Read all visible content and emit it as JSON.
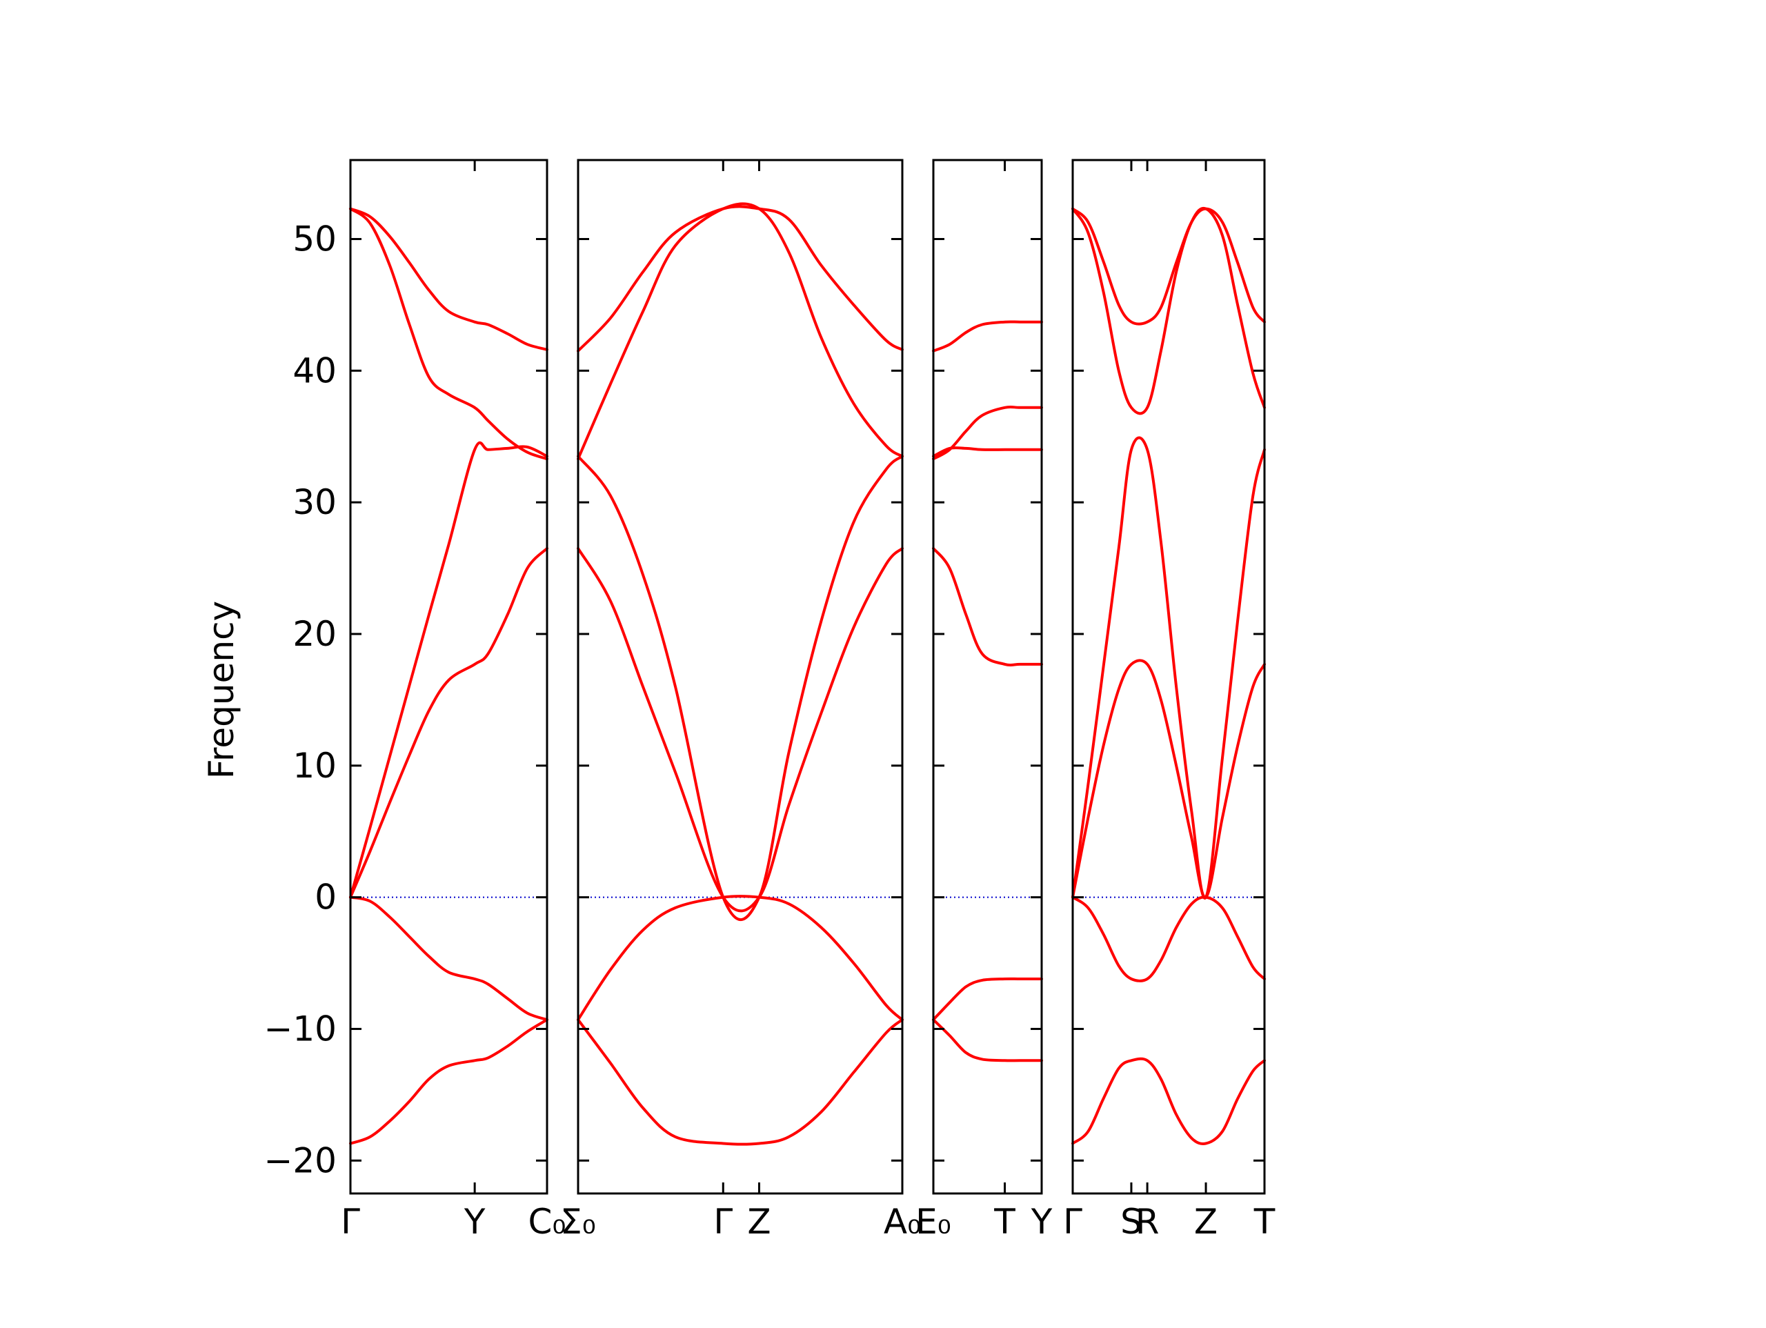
{
  "chart_data": {
    "type": "line",
    "title": "",
    "ylabel": "Frequency",
    "ylim": [
      -22.5,
      56
    ],
    "yticks": [
      -20,
      -10,
      0,
      10,
      20,
      30,
      40,
      50
    ],
    "ytick_labels": [
      "−20",
      "−10",
      "0",
      "10",
      "20",
      "30",
      "40",
      "50"
    ],
    "line_color": "#ff0000",
    "zero_line_color": "#0000cc",
    "grid": false,
    "legend": false,
    "panels": [
      {
        "id": "panel-1",
        "x_labels": [
          "Γ",
          "Y",
          "C₀"
        ],
        "x_positions": [
          0,
          0.6321,
          1
        ],
        "series": [
          {
            "x": [
              0,
              0.1,
              0.2,
              0.3,
              0.4,
              0.5,
              0.6321,
              0.7,
              0.8,
              0.9,
              1
            ],
            "values": [
              52.3,
              51.2,
              48,
              43.5,
              39.5,
              38.2,
              37.2,
              36.2,
              34.8,
              33.8,
              33.3
            ]
          },
          {
            "x": [
              0,
              0.1,
              0.2,
              0.3,
              0.4,
              0.5,
              0.6321,
              0.7,
              0.8,
              0.9,
              1
            ],
            "values": [
              52.3,
              51.7,
              50.2,
              48.2,
              46.1,
              44.5,
              43.7,
              43.5,
              42.8,
              42,
              41.6
            ]
          },
          {
            "x": [
              0,
              0.1,
              0.2,
              0.3,
              0.4,
              0.5,
              0.6321,
              0.7,
              0.8,
              0.9,
              1
            ],
            "values": [
              0,
              5.3,
              10.7,
              16.1,
              21.5,
              26.8,
              34,
              34,
              34.1,
              34.2,
              33.5
            ]
          },
          {
            "x": [
              0,
              0.1,
              0.2,
              0.3,
              0.4,
              0.5,
              0.6321,
              0.7,
              0.8,
              0.9,
              1
            ],
            "values": [
              0,
              3.5,
              7.2,
              10.8,
              14.2,
              16.5,
              17.7,
              18.5,
              21.5,
              25,
              26.5
            ]
          },
          {
            "x": [
              0,
              0.1,
              0.2,
              0.3,
              0.4,
              0.5,
              0.6321,
              0.7,
              0.8,
              0.9,
              1
            ],
            "values": [
              0,
              -0.3,
              -1.5,
              -3,
              -4.5,
              -5.7,
              -6.2,
              -6.6,
              -7.7,
              -8.8,
              -9.3
            ]
          },
          {
            "x": [
              0,
              0.1,
              0.2,
              0.3,
              0.4,
              0.5,
              0.6321,
              0.7,
              0.8,
              0.9,
              1
            ],
            "values": [
              -18.7,
              -18.2,
              -17,
              -15.5,
              -13.8,
              -12.8,
              -12.4,
              -12.2,
              -11.3,
              -10.2,
              -9.3
            ]
          }
        ]
      },
      {
        "id": "panel-2",
        "x_labels": [
          "Σ₀",
          "Γ",
          "Z",
          "A₀"
        ],
        "x_positions": [
          0,
          0.4474,
          0.5585,
          1
        ],
        "series": [
          {
            "x": [
              0,
              0.1,
              0.2,
              0.3,
              0.4474,
              0.5585,
              0.65,
              0.75,
              0.85,
              0.95,
              1
            ],
            "values": [
              41.5,
              44,
              47.5,
              50.5,
              52.3,
              52.3,
              51.5,
              48,
              45,
              42.3,
              41.6
            ]
          },
          {
            "x": [
              0,
              0.1,
              0.2,
              0.3,
              0.4474,
              0.5585,
              0.65,
              0.75,
              0.85,
              0.95,
              1
            ],
            "values": [
              33.3,
              39,
              44.5,
              49.5,
              52.3,
              52.3,
              49,
              42.5,
              37.5,
              34.3,
              33.5
            ]
          },
          {
            "x": [
              0,
              0.1,
              0.2,
              0.3,
              0.4474,
              0.5585,
              0.65,
              0.75,
              0.85,
              0.95,
              1
            ],
            "values": [
              33.5,
              30.5,
              24.5,
              16,
              0,
              0,
              11,
              21,
              28.5,
              32.5,
              33.5
            ]
          },
          {
            "x": [
              0,
              0.1,
              0.2,
              0.3,
              0.4474,
              0.5585,
              0.65,
              0.75,
              0.85,
              0.95,
              1
            ],
            "values": [
              26.5,
              22.5,
              16,
              9.5,
              0,
              0,
              7,
              14,
              20.5,
              25.3,
              26.5
            ]
          },
          {
            "x": [
              0,
              0.1,
              0.2,
              0.3,
              0.4474,
              0.5585,
              0.65,
              0.75,
              0.85,
              0.95,
              1
            ],
            "values": [
              -9.3,
              -5.5,
              -2.5,
              -0.8,
              0,
              0,
              -0.5,
              -2.3,
              -5,
              -8.2,
              -9.3
            ]
          },
          {
            "x": [
              0,
              0.1,
              0.2,
              0.3,
              0.4474,
              0.5585,
              0.65,
              0.75,
              0.85,
              0.95,
              1
            ],
            "values": [
              -9.3,
              -12.6,
              -16,
              -18.2,
              -18.7,
              -18.7,
              -18.2,
              -16.3,
              -13.3,
              -10.3,
              -9.3
            ]
          }
        ]
      },
      {
        "id": "panel-3",
        "x_labels": [
          "E₀",
          "T",
          "Y"
        ],
        "x_positions": [
          0,
          0.6596,
          1
        ],
        "series": [
          {
            "x": [
              0,
              0.15,
              0.3,
              0.45,
              0.6596,
              0.8,
              1
            ],
            "values": [
              41.5,
              42,
              42.9,
              43.5,
              43.7,
              43.7,
              43.7
            ]
          },
          {
            "x": [
              0,
              0.15,
              0.3,
              0.45,
              0.6596,
              0.8,
              1
            ],
            "values": [
              33.3,
              34,
              35.4,
              36.6,
              37.2,
              37.2,
              37.2
            ]
          },
          {
            "x": [
              0,
              0.15,
              0.3,
              0.45,
              0.6596,
              0.8,
              1
            ],
            "values": [
              33.5,
              34.1,
              34.1,
              34,
              34,
              34,
              34
            ]
          },
          {
            "x": [
              0,
              0.15,
              0.3,
              0.45,
              0.6596,
              0.8,
              1
            ],
            "values": [
              26.5,
              25,
              21.5,
              18.5,
              17.7,
              17.7,
              17.7
            ]
          },
          {
            "x": [
              0,
              0.15,
              0.3,
              0.45,
              0.6596,
              0.8,
              1
            ],
            "values": [
              -9.3,
              -8,
              -6.8,
              -6.3,
              -6.2,
              -6.2,
              -6.2
            ]
          },
          {
            "x": [
              0,
              0.15,
              0.3,
              0.45,
              0.6596,
              0.8,
              1
            ],
            "values": [
              -9.3,
              -10.5,
              -11.8,
              -12.3,
              -12.4,
              -12.4,
              -12.4
            ]
          }
        ]
      },
      {
        "id": "panel-4",
        "x_labels": [
          "Γ",
          "S",
          "R",
          "Z",
          "T"
        ],
        "x_positions": [
          0,
          0.3056,
          0.3889,
          0.6944,
          1
        ],
        "series": [
          {
            "x": [
              0,
              0.08,
              0.16,
              0.24,
              0.3056,
              0.3889,
              0.46,
              0.54,
              0.62,
              0.6944,
              0.78,
              0.86,
              0.94,
              1
            ],
            "values": [
              52.3,
              51.3,
              48.3,
              45,
              43.7,
              43.7,
              44.8,
              48.2,
              51.3,
              52.3,
              51.3,
              48.2,
              44.8,
              43.7
            ]
          },
          {
            "x": [
              0,
              0.08,
              0.16,
              0.24,
              0.3056,
              0.3889,
              0.46,
              0.54,
              0.62,
              0.6944,
              0.78,
              0.86,
              0.94,
              1
            ],
            "values": [
              52.3,
              50.5,
              46,
              40,
              37.2,
              37.2,
              41.5,
              47.5,
              51.3,
              52.3,
              50.3,
              45,
              39.8,
              37.2
            ]
          },
          {
            "x": [
              0,
              0.08,
              0.16,
              0.24,
              0.3056,
              0.3889,
              0.46,
              0.54,
              0.62,
              0.6944,
              0.78,
              0.86,
              0.94,
              1
            ],
            "values": [
              0,
              8.5,
              17.5,
              26.5,
              34,
              34,
              27,
              16,
              6.5,
              0,
              10.5,
              21,
              30.5,
              34
            ]
          },
          {
            "x": [
              0,
              0.08,
              0.16,
              0.24,
              0.3056,
              0.3889,
              0.46,
              0.54,
              0.62,
              0.6944,
              0.78,
              0.86,
              0.94,
              1
            ],
            "values": [
              0,
              6,
              11.5,
              15.8,
              17.7,
              17.7,
              15,
              10,
              4.5,
              0,
              6,
              11.5,
              16,
              17.7
            ]
          },
          {
            "x": [
              0,
              0.08,
              0.16,
              0.24,
              0.3056,
              0.3889,
              0.46,
              0.54,
              0.62,
              0.6944,
              0.78,
              0.86,
              0.94,
              1
            ],
            "values": [
              0,
              -0.8,
              -2.8,
              -5.2,
              -6.2,
              -6.2,
              -4.8,
              -2.3,
              -0.5,
              0,
              -0.8,
              -3,
              -5.3,
              -6.2
            ]
          },
          {
            "x": [
              0,
              0.08,
              0.16,
              0.24,
              0.3056,
              0.3889,
              0.46,
              0.54,
              0.62,
              0.6944,
              0.78,
              0.86,
              0.94,
              1
            ],
            "values": [
              -18.7,
              -17.8,
              -15.3,
              -13,
              -12.4,
              -12.4,
              -13.8,
              -16.5,
              -18.3,
              -18.7,
              -17.8,
              -15.3,
              -13.2,
              -12.4
            ]
          }
        ]
      }
    ]
  }
}
